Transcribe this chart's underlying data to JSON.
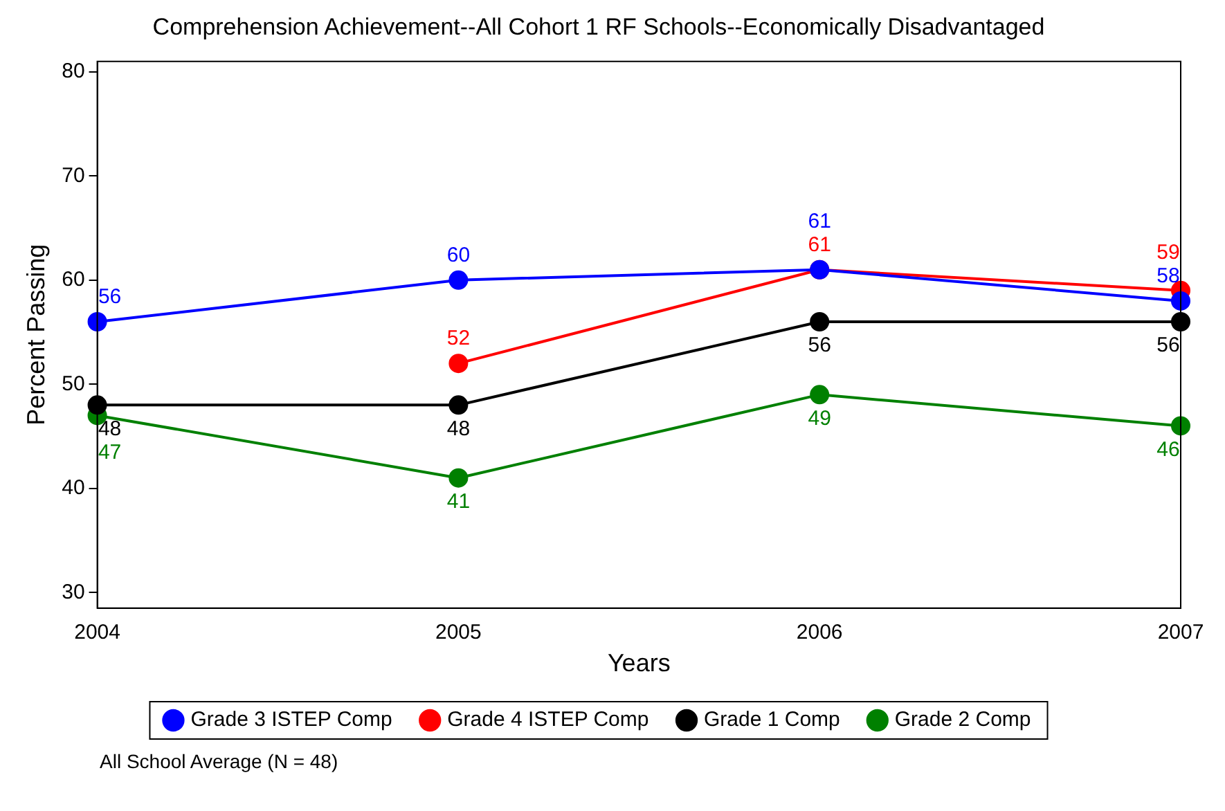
{
  "chart_data": {
    "type": "line",
    "title": "Comprehension Achievement--All Cohort 1 RF Schools--Economically Disadvantaged",
    "xlabel": "Years",
    "ylabel": "Percent Passing",
    "x": [
      2004,
      2005,
      2006,
      2007
    ],
    "series": [
      {
        "name": "Grade 3 ISTEP Comp",
        "color": "#0000ff",
        "values": [
          56,
          60,
          61,
          58
        ]
      },
      {
        "name": "Grade 4 ISTEP Comp",
        "color": "#ff0000",
        "values": [
          null,
          52,
          61,
          59
        ]
      },
      {
        "name": "Grade 1 Comp",
        "color": "#000000",
        "values": [
          48,
          48,
          56,
          56
        ]
      },
      {
        "name": "Grade 2 Comp",
        "color": "#008000",
        "values": [
          47,
          41,
          49,
          46
        ]
      }
    ],
    "xlim": [
      2004,
      2007
    ],
    "xticks": [
      2004,
      2005,
      2006,
      2007
    ],
    "ylim": [
      28.5,
      81
    ],
    "yticks": [
      30,
      40,
      50,
      60,
      70,
      80
    ],
    "grid": false,
    "legend": "bottom",
    "marker": "circle",
    "line_style": "solid",
    "data_labels": true,
    "annotations": [
      "All School Average (N = 48)"
    ]
  }
}
